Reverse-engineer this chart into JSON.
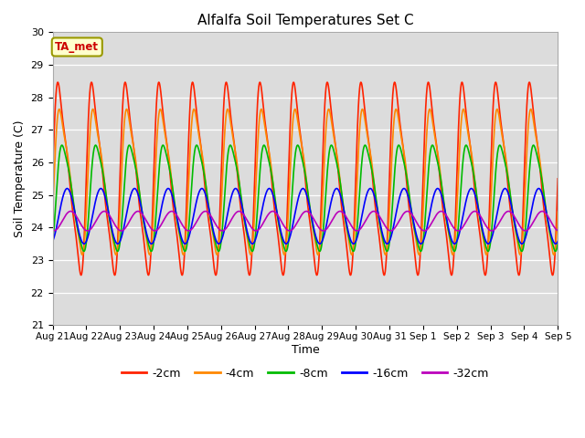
{
  "title": "Alfalfa Soil Temperatures Set C",
  "xlabel": "Time",
  "ylabel": "Soil Temperature (C)",
  "ylim": [
    21.0,
    30.0
  ],
  "ytick_min": 21.0,
  "ytick_max": 30.0,
  "ytick_step": 1.0,
  "bg_color": "#dcdcdc",
  "fig_color": "#ffffff",
  "series": [
    {
      "label": "-2cm",
      "color": "#ff2200",
      "amplitude": 3.7,
      "phase": 0.0,
      "mean": 25.5,
      "decay": 0.0
    },
    {
      "label": "-4cm",
      "color": "#ff8800",
      "amplitude": 2.8,
      "phase": 0.25,
      "mean": 25.4,
      "decay": 0.0
    },
    {
      "label": "-8cm",
      "color": "#00bb00",
      "amplitude": 2.0,
      "phase": 0.65,
      "mean": 24.9,
      "decay": 0.0
    },
    {
      "label": "-16cm",
      "color": "#0000ff",
      "amplitude": 0.85,
      "phase": 1.15,
      "mean": 24.35,
      "decay": 0.0
    },
    {
      "label": "-32cm",
      "color": "#bb00bb",
      "amplitude": 0.3,
      "phase": 1.8,
      "mean": 24.2,
      "decay": 0.0
    }
  ],
  "n_days": 15,
  "points_per_day": 288,
  "day_labels": [
    "Aug 21",
    "Aug 22",
    "Aug 23",
    "Aug 24",
    "Aug 25",
    "Aug 26",
    "Aug 27",
    "Aug 28",
    "Aug 29",
    "Aug 30",
    "Aug 31",
    "Sep 1",
    "Sep 2",
    "Sep 3",
    "Sep 4",
    "Sep 5"
  ],
  "annotation_text": "TA_met",
  "annotation_color": "#cc0000",
  "annotation_bg": "#ffffcc",
  "annotation_border": "#999900",
  "linewidth": 1.2
}
